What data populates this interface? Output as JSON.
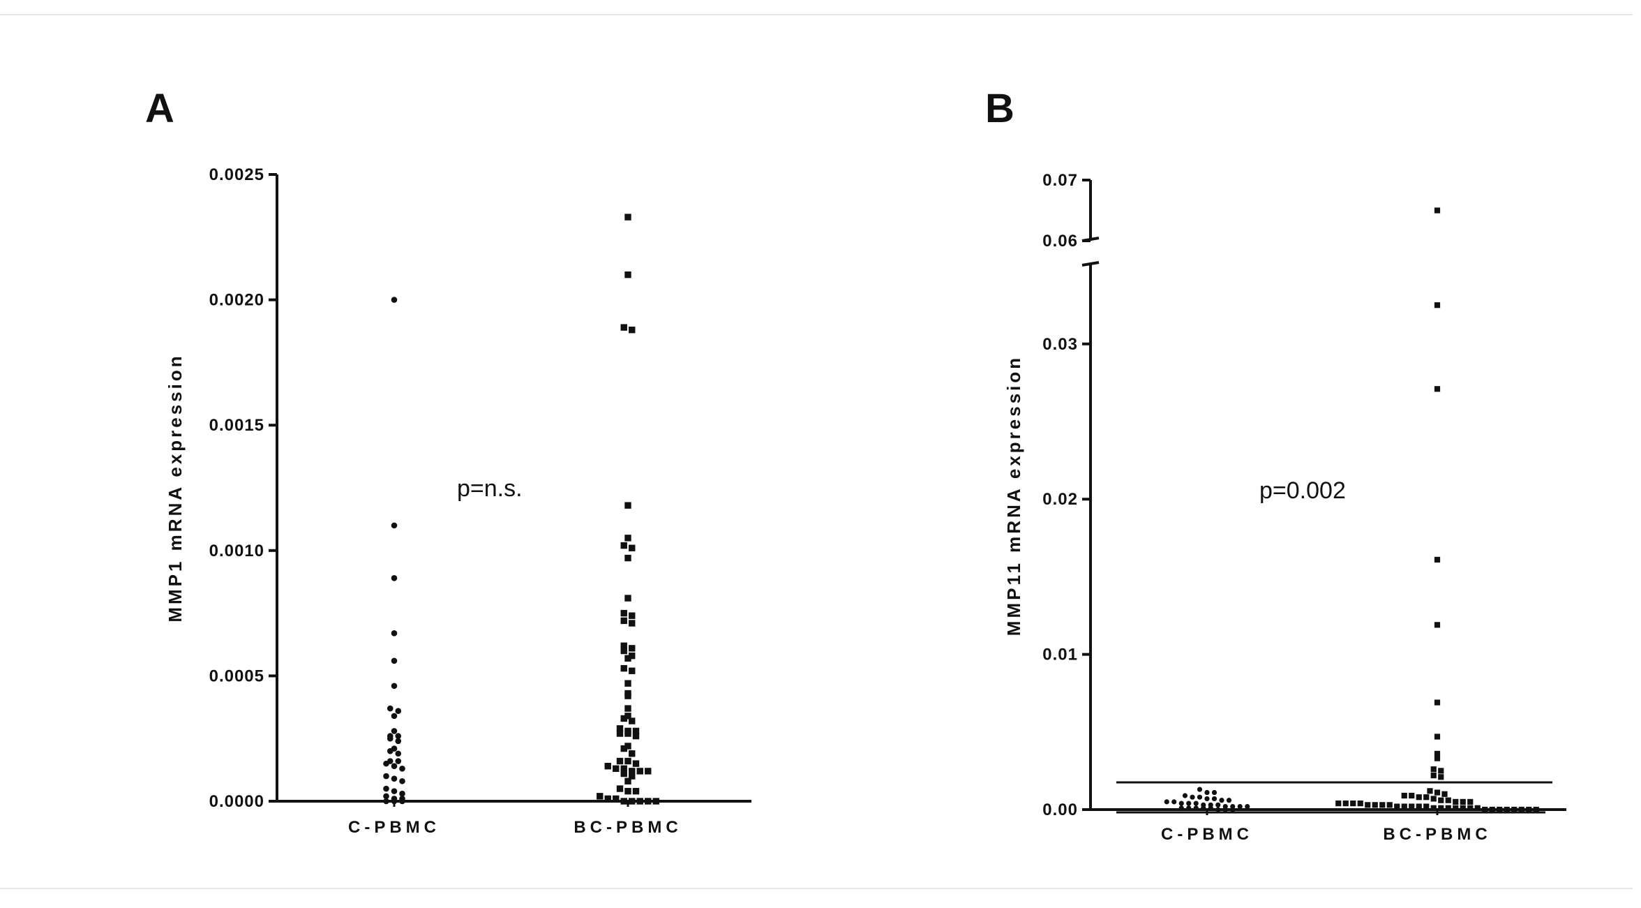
{
  "chart_data": [
    {
      "panel": "A",
      "type": "scatter",
      "ylabel": "MMP1 mRNA expression",
      "categories": [
        "C-PBMC",
        "BC-PBMC"
      ],
      "yticks": [
        "0.0000",
        "0.0005",
        "0.0010",
        "0.0015",
        "0.0020",
        "0.0025"
      ],
      "ylim": [
        0,
        0.0025
      ],
      "annotation": "p=n.s.",
      "series": [
        {
          "category": "C-PBMC",
          "marker": "circle",
          "values": [
            0.002,
            0.0011,
            0.00089,
            0.00067,
            0.00056,
            0.00046,
            0.00037,
            0.00036,
            0.00034,
            0.00028,
            0.00026,
            0.00026,
            0.00025,
            0.00024,
            0.00021,
            0.0002,
            0.00019,
            0.00016,
            0.00016,
            0.00015,
            0.00014,
            0.00013,
            0.0001,
            9e-05,
            8e-05,
            5e-05,
            4e-05,
            3e-05,
            2e-05,
            1e-05,
            1e-05,
            0.0,
            0.0,
            0.0
          ]
        },
        {
          "category": "BC-PBMC",
          "marker": "square",
          "values": [
            0.00233,
            0.0021,
            0.00189,
            0.00188,
            0.00118,
            0.00105,
            0.00102,
            0.00101,
            0.00097,
            0.00081,
            0.00075,
            0.00074,
            0.00072,
            0.00071,
            0.00062,
            0.00061,
            0.0006,
            0.00058,
            0.00057,
            0.00053,
            0.00052,
            0.00047,
            0.00043,
            0.00042,
            0.00037,
            0.00034,
            0.00033,
            0.00032,
            0.00029,
            0.00028,
            0.00028,
            0.00027,
            0.00027,
            0.00026,
            0.00022,
            0.00021,
            0.00019,
            0.00016,
            0.00016,
            0.00015,
            0.00014,
            0.00013,
            0.00013,
            0.00012,
            0.00012,
            0.00012,
            0.00011,
            0.0001,
            8e-05,
            5e-05,
            4e-05,
            4e-05,
            2e-05,
            1e-05,
            1e-05,
            0.0,
            0.0,
            0.0,
            0.0,
            0.0
          ]
        }
      ]
    },
    {
      "panel": "B",
      "type": "scatter",
      "ylabel": "MMP11 mRNA expression",
      "categories": [
        "C-PBMC",
        "BC-PBMC"
      ],
      "yticks": [
        "0.00",
        "0.01",
        "0.02",
        "0.03",
        "0.06",
        "0.07"
      ],
      "ylim": [
        0,
        0.07
      ],
      "axis_break": [
        0.035,
        0.06
      ],
      "annotation": "p=0.002",
      "series": [
        {
          "category": "C-PBMC",
          "marker": "circle",
          "values": [
            0.0013,
            0.0011,
            0.0011,
            0.0009,
            0.0008,
            0.0008,
            0.0007,
            0.0007,
            0.0006,
            0.0006,
            0.0005,
            0.0005,
            0.0004,
            0.0004,
            0.0004,
            0.0003,
            0.0003,
            0.0003,
            0.0002,
            0.0002,
            0.0002,
            0.0002,
            0.0001,
            0.0001,
            0.0001,
            0.0001,
            0.0001,
            0.0,
            0.0,
            0.0
          ]
        },
        {
          "category": "BC-PBMC",
          "marker": "square",
          "values": [
            0.065,
            0.0325,
            0.0271,
            0.0161,
            0.0119,
            0.0069,
            0.0047,
            0.0036,
            0.0033,
            0.0026,
            0.0025,
            0.0022,
            0.0021,
            0.0012,
            0.0011,
            0.001,
            0.0009,
            0.0009,
            0.0008,
            0.0008,
            0.0007,
            0.0006,
            0.0006,
            0.0005,
            0.0005,
            0.0005,
            0.0004,
            0.0004,
            0.0004,
            0.0004,
            0.0003,
            0.0003,
            0.0003,
            0.0003,
            0.0002,
            0.0002,
            0.0002,
            0.0002,
            0.0002,
            0.0001,
            0.0001,
            0.0001,
            0.0001,
            0.0001,
            0.0001,
            0.0001,
            0.0,
            0.0,
            0.0,
            0.0,
            0.0,
            0.0,
            0.0,
            0.0
          ]
        }
      ]
    }
  ]
}
